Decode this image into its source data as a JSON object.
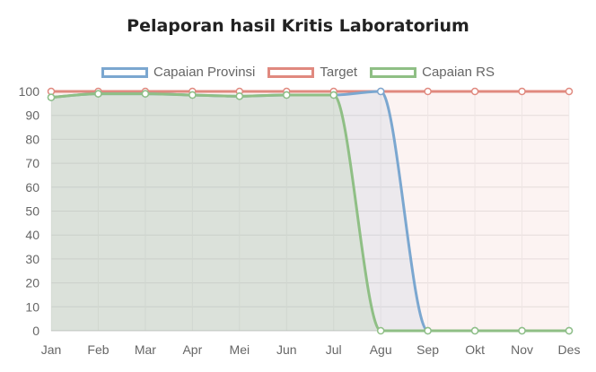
{
  "chart_data": {
    "type": "line",
    "title": "Pelaporan hasil Kritis Laboratorium",
    "categories": [
      "Jan",
      "Feb",
      "Mar",
      "Apr",
      "Mei",
      "Jun",
      "Jul",
      "Agu",
      "Sep",
      "Okt",
      "Nov",
      "Des"
    ],
    "ylim": [
      0,
      100
    ],
    "yticks": [
      0,
      10,
      20,
      30,
      40,
      50,
      60,
      70,
      80,
      90,
      100
    ],
    "grid": true,
    "legend_position": "top",
    "series": [
      {
        "name": "Capaian Provinsi",
        "color": "#7ba7d0",
        "fill": "rgba(123,167,208,0.12)",
        "values": [
          97.5,
          99,
          99,
          98.5,
          98,
          98.5,
          98.5,
          100,
          0,
          0,
          0,
          0
        ]
      },
      {
        "name": "Target",
        "color": "#e0897f",
        "fill": "rgba(224,137,127,0.10)",
        "values": [
          100,
          100,
          100,
          100,
          100,
          100,
          100,
          100,
          100,
          100,
          100,
          100
        ]
      },
      {
        "name": "Capaian RS",
        "color": "#8fbf85",
        "fill": "rgba(143,191,133,0.18)",
        "values": [
          97.5,
          99,
          99,
          98.5,
          98,
          98.5,
          98.5,
          0,
          0,
          0,
          0,
          0
        ]
      }
    ]
  }
}
